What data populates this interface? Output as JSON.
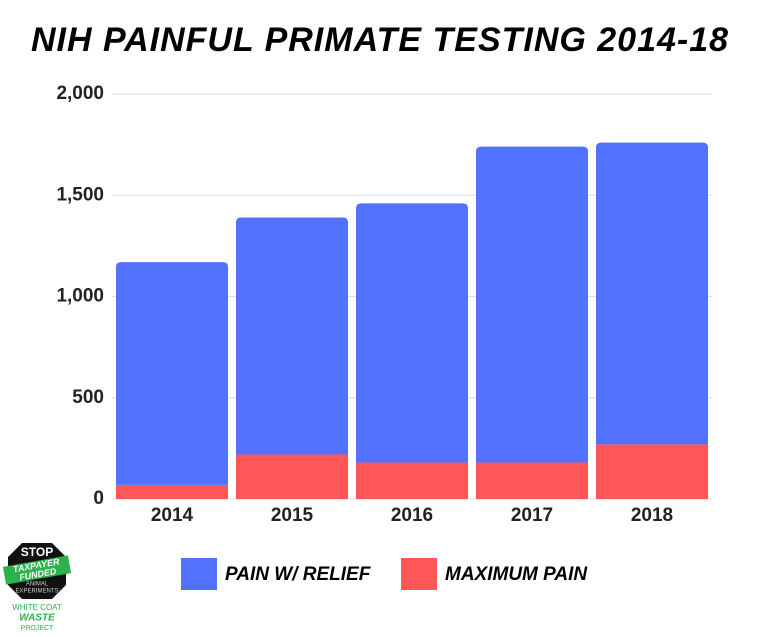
{
  "chart_data": {
    "type": "stacked-bar",
    "title": "NIH PAINFUL PRIMATE TESTING 2014-18",
    "categories": [
      "2014",
      "2015",
      "2016",
      "2017",
      "2018"
    ],
    "series": [
      {
        "name": "PAIN W/ RELIEF",
        "color": "#5271ff",
        "values": [
          1100,
          1170,
          1280,
          1560,
          1490
        ]
      },
      {
        "name": "MAXIMUM PAIN",
        "color": "#ff5757",
        "values": [
          70,
          220,
          180,
          180,
          270
        ]
      }
    ],
    "ylim": [
      0,
      2000
    ],
    "yticks": [
      0,
      500,
      {
        "value": 1000,
        "label": "1,000"
      },
      {
        "value": 1500,
        "label": "1,500"
      },
      {
        "value": 2000,
        "label": "2,000"
      }
    ],
    "grid": true,
    "legend": "bottom"
  },
  "logo": {
    "line1": "STOP",
    "line2": "TAXPAYER",
    "line3": "FUNDED",
    "line4": "ANIMAL",
    "line5": "EXPERIMENTS",
    "line6": "WHITE COAT",
    "line7": "WASTE",
    "line8": "PROJECT"
  }
}
